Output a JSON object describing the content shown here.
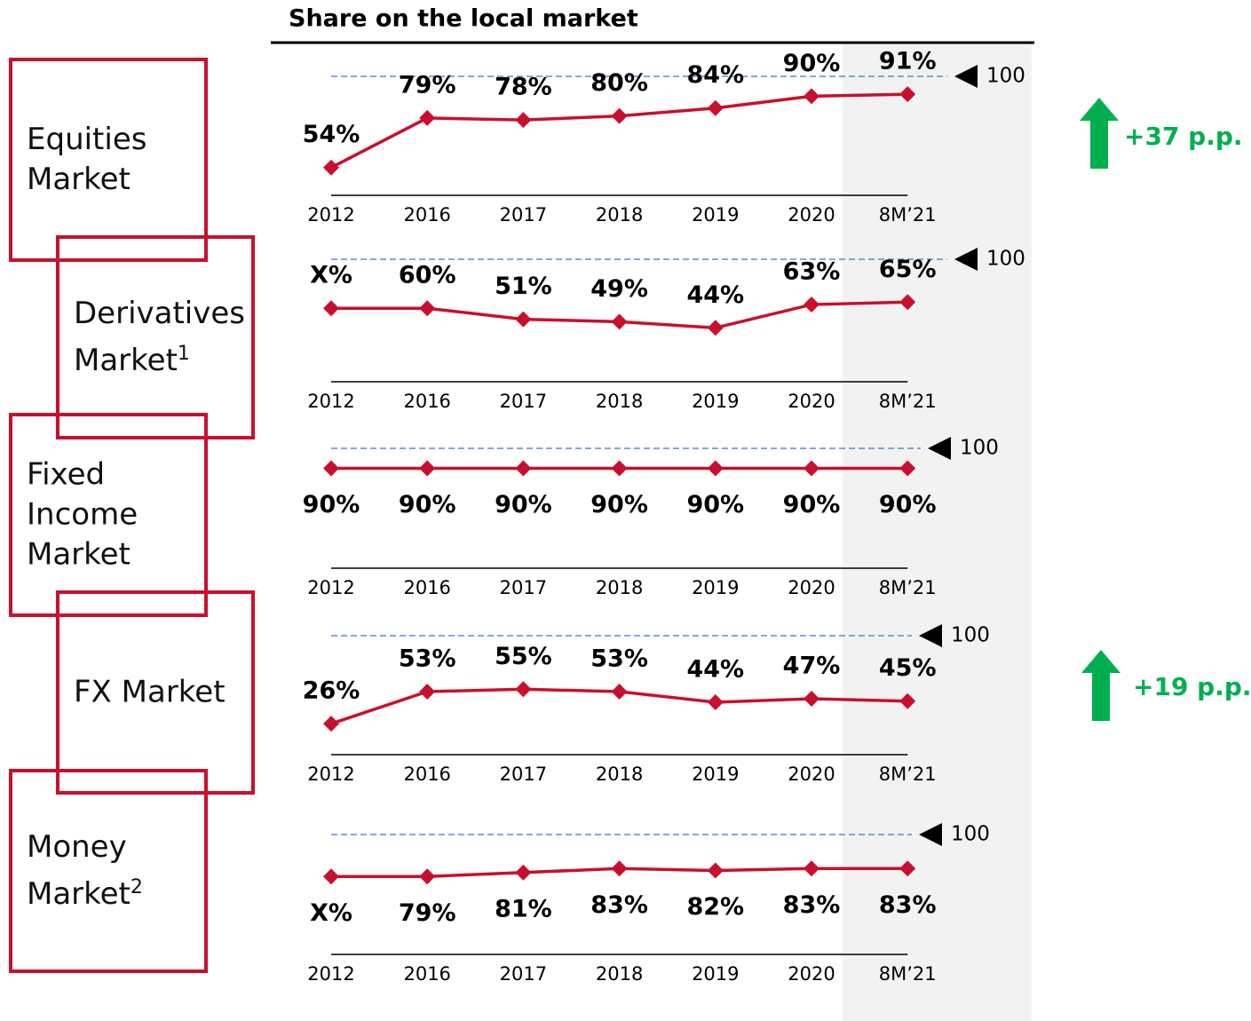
{
  "title": "Share on the local market",
  "chart_data": [
    {
      "type": "line",
      "title": "Equities Market",
      "categories": [
        "2012",
        "2016",
        "2017",
        "2018",
        "2019",
        "2020",
        "8M’21"
      ],
      "values": [
        54,
        79,
        78,
        80,
        84,
        90,
        91
      ],
      "color": "#c8102e",
      "ylim": [
        40,
        100
      ],
      "reference_line": 100,
      "label_position": "above",
      "annotation": "+37 p.p."
    },
    {
      "type": "line",
      "title": "Derivatives Market",
      "title_note": "1",
      "categories": [
        "2012",
        "2016",
        "2017",
        "2018",
        "2019",
        "2020",
        "8M’21"
      ],
      "values": [
        60,
        60,
        51,
        49,
        44,
        63,
        65
      ],
      "value_labels": [
        "X%",
        "60%",
        "51%",
        "49%",
        "44%",
        "63%",
        "65%"
      ],
      "color": "#c8102e",
      "ylim": [
        0,
        100
      ],
      "reference_line": 100,
      "label_position": "above"
    },
    {
      "type": "line",
      "title": "Fixed Income Market",
      "categories": [
        "2012",
        "2016",
        "2017",
        "2018",
        "2019",
        "2020",
        "8M’21"
      ],
      "values": [
        90,
        90,
        90,
        90,
        90,
        90,
        90
      ],
      "color": "#c8102e",
      "ylim": [
        40,
        100
      ],
      "reference_line": 100,
      "label_position": "below"
    },
    {
      "type": "line",
      "title": "FX Market",
      "categories": [
        "2012",
        "2016",
        "2017",
        "2018",
        "2019",
        "2020",
        "8M’21"
      ],
      "values": [
        26,
        53,
        55,
        53,
        44,
        47,
        45
      ],
      "color": "#c8102e",
      "ylim": [
        0,
        100
      ],
      "reference_line": 100,
      "label_position": "above",
      "annotation": "+19 p.p."
    },
    {
      "type": "line",
      "title": "Money Market",
      "title_note": "2",
      "categories": [
        "2012",
        "2016",
        "2017",
        "2018",
        "2019",
        "2020",
        "8M’21"
      ],
      "values": [
        79,
        79,
        81,
        83,
        82,
        83,
        83
      ],
      "value_labels": [
        "X%",
        "79%",
        "81%",
        "83%",
        "82%",
        "83%",
        "83%"
      ],
      "color": "#c8102e",
      "ylim": [
        40,
        100
      ],
      "reference_line": 100,
      "label_position": "below"
    }
  ]
}
